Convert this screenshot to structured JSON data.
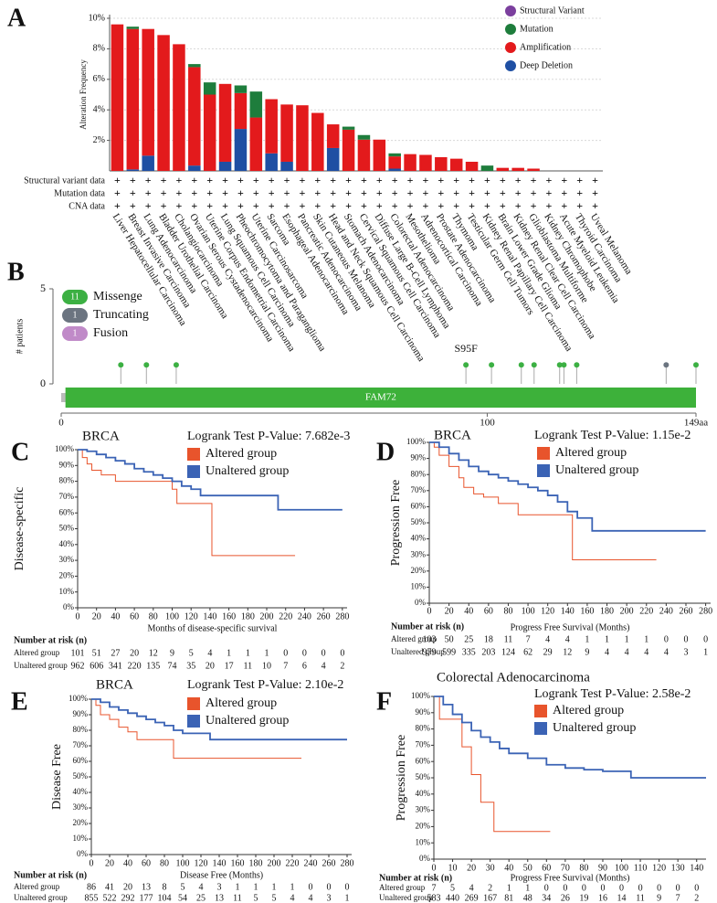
{
  "chart_data": [
    {
      "type": "stacked_bar",
      "panel_label": "A",
      "y_label": "Alteration Frequency",
      "categories": [
        "Liver Hepatocellular Carcinoma",
        "Breast Invasive Carcinoma",
        "Lung Adenocarcinoma",
        "Bladder Urothelial Carcinoma",
        "Cholangiocarcinoma",
        "Ovarian Serous Cystadenocarcinoma",
        "Uterine Corpus Endometrial Carcinoma",
        "Lung Squamous Cell Carcinoma",
        "Pheochromocytoma and Paraganglioma",
        "Uterine Carcinosarcoma",
        "Sarcoma",
        "Esophageal Adenocarcinoma",
        "Pancreatic Adenocarcinoma",
        "Skin Cutaneous Melanoma",
        "Head and Neck Squamous Cell Carcinoma",
        "Stomach Adenocarcinoma",
        "Cervical Squamous Cell Carcinoma",
        "Diffuse Large B-Cell Lymphoma",
        "Colorectal Adenocarcinoma",
        "Mesothelioma",
        "Adrenocortical Carcinoma",
        "Prostate Adenocarcinoma",
        "Thymoma",
        "Testicular Germ Cell Tumors",
        "Kidney Renal Papillary Cell Carcinoma",
        "Brain Lower Grade Glioma",
        "Kidney Renal Clear Cell Carcinoma",
        "Glioblastoma Multiforme",
        "Kidney Chromophobe",
        "Acute Myeloid Leukemia",
        "Thyroid Carcinoma",
        "Uveal Melanoma"
      ],
      "series": [
        {
          "name": "Structural Variant",
          "color": "#7b3f9e",
          "values": [
            0,
            0,
            0,
            0,
            0,
            0,
            0,
            0,
            0,
            0,
            0,
            0,
            0,
            0,
            0,
            0,
            0,
            0,
            0,
            0,
            0,
            0,
            0,
            0,
            0,
            0,
            0,
            0,
            0,
            0,
            0,
            0
          ]
        },
        {
          "name": "Mutation",
          "color": "#1e7d3c",
          "values": [
            0,
            0.15,
            0,
            0,
            0,
            0.2,
            0.8,
            0,
            0.5,
            1.7,
            0,
            0,
            0,
            0,
            0,
            0.2,
            0.3,
            0,
            0.2,
            0,
            0,
            0,
            0,
            0,
            0.35,
            0,
            0,
            0,
            0,
            0,
            0,
            0
          ]
        },
        {
          "name": "Amplification",
          "color": "#e31a1c",
          "values": [
            9.6,
            9.2,
            8.3,
            8.9,
            8.3,
            6.45,
            5.0,
            5.1,
            2.35,
            3.5,
            3.55,
            3.75,
            4.3,
            3.8,
            1.55,
            2.7,
            2.05,
            2.05,
            0.8,
            1.1,
            1.05,
            0.9,
            0.8,
            0.6,
            0,
            0.2,
            0.2,
            0.15,
            0,
            0,
            0,
            0
          ]
        },
        {
          "name": "Deep Deletion",
          "color": "#1f4fa3",
          "values": [
            0,
            0.1,
            1.0,
            0,
            0,
            0.35,
            0,
            0.6,
            2.75,
            0,
            1.15,
            0.6,
            0,
            0,
            1.5,
            0,
            0,
            0,
            0.15,
            0,
            0,
            0,
            0,
            0,
            0,
            0,
            0,
            0,
            0,
            0,
            0,
            0
          ]
        }
      ],
      "ylim": [
        0,
        10
      ],
      "yticks": [
        {
          "value": 2,
          "label": "2%"
        },
        {
          "value": 4,
          "label": "4%"
        },
        {
          "value": 6,
          "label": "6%"
        },
        {
          "value": 8,
          "label": "8%"
        },
        {
          "value": 10,
          "label": "10%"
        }
      ],
      "grid": true,
      "rows": [
        "Structural variant data",
        "Mutation data",
        "CNA data"
      ],
      "row_marker": "+"
    },
    {
      "type": "lollipop",
      "panel_label": "B",
      "y_label": "# patients",
      "series": [
        {
          "name": "Missenge",
          "count": 11,
          "color": "#3cb043",
          "x": [
            14,
            20,
            27,
            95,
            101,
            108,
            111,
            117,
            118,
            121,
            149
          ],
          "values": [
            1,
            1,
            1,
            1,
            1,
            1,
            1,
            1,
            1,
            1,
            1
          ]
        },
        {
          "name": "Truncating",
          "count": 1,
          "color": "#6b7480",
          "x": [
            142
          ],
          "values": [
            1
          ]
        },
        {
          "name": "Fusion",
          "count": 1,
          "color": "#c08ac8",
          "x": [],
          "values": []
        }
      ],
      "domains": [
        {
          "name": "FAM72",
          "start": 1,
          "end": 149,
          "color": "#3db13a"
        }
      ],
      "annotation": {
        "text": "S95F",
        "x": 95
      },
      "xlim": [
        0,
        149
      ],
      "xticks": [
        0,
        100,
        {
          "value": 149,
          "label": "149aa"
        }
      ],
      "ylim": [
        0,
        5
      ],
      "yticks": [
        0,
        5
      ]
    },
    {
      "type": "survival",
      "panel_label": "C",
      "title": "BRCA",
      "subtitle": "Logrank Test P-Value: 7.682e-3",
      "x_label": "Months of disease-specific survival",
      "y_label": "Disease-specific",
      "risk_title": "Number at risk (n)",
      "xlim": [
        0,
        285
      ],
      "xticks": [
        0,
        20,
        40,
        60,
        80,
        100,
        120,
        140,
        160,
        180,
        200,
        220,
        240,
        260,
        280
      ],
      "ylim": [
        0,
        100
      ],
      "yticks": [
        {
          "value": 0,
          "label": "0%"
        },
        {
          "value": 10,
          "label": "10%"
        },
        {
          "value": 20,
          "label": "20%"
        },
        {
          "value": 30,
          "label": "30%"
        },
        {
          "value": 40,
          "label": "40%"
        },
        {
          "value": 50,
          "label": "50%"
        },
        {
          "value": 60,
          "label": "60%"
        },
        {
          "value": 70,
          "label": "70%"
        },
        {
          "value": 80,
          "label": "80%"
        },
        {
          "value": 90,
          "label": "90%"
        },
        {
          "value": 100,
          "label": "100%"
        }
      ],
      "series": [
        {
          "name": "Altered group",
          "color": "#e8542c",
          "x": [
            0,
            5,
            10,
            15,
            25,
            40,
            70,
            100,
            105,
            142,
            230
          ],
          "values": [
            100,
            95,
            91,
            87,
            84,
            80,
            80,
            75,
            66,
            33,
            33
          ],
          "at_risk": [
            101,
            51,
            27,
            20,
            12,
            9,
            5,
            4,
            1,
            1,
            1,
            0,
            0,
            0,
            0
          ]
        },
        {
          "name": "Unaltered group",
          "color": "#3b63b5",
          "x": [
            0,
            10,
            20,
            30,
            40,
            50,
            60,
            70,
            80,
            90,
            100,
            110,
            120,
            130,
            212,
            280
          ],
          "values": [
            100,
            99,
            97,
            95,
            93,
            91,
            88,
            86,
            84,
            82,
            80,
            77,
            75,
            71,
            62,
            62
          ],
          "at_risk": [
            962,
            606,
            341,
            220,
            135,
            74,
            35,
            20,
            17,
            11,
            10,
            7,
            6,
            4,
            2
          ]
        }
      ]
    },
    {
      "type": "survival",
      "panel_label": "D",
      "title": "BRCA",
      "subtitle": "Logrank Test P-Value: 1.15e-2",
      "x_label": "Progress Free Survival (Months)",
      "y_label": "Progression Free",
      "risk_title": "Number at risk (n)",
      "xlim": [
        0,
        285
      ],
      "xticks": [
        0,
        20,
        40,
        60,
        80,
        100,
        120,
        140,
        160,
        180,
        200,
        220,
        240,
        260,
        280
      ],
      "ylim": [
        0,
        100
      ],
      "yticks": [
        {
          "value": 0,
          "label": "0%"
        },
        {
          "value": 10,
          "label": "10%"
        },
        {
          "value": 20,
          "label": "20%"
        },
        {
          "value": 30,
          "label": "30%"
        },
        {
          "value": 40,
          "label": "40%"
        },
        {
          "value": 50,
          "label": "50%"
        },
        {
          "value": 60,
          "label": "60%"
        },
        {
          "value": 70,
          "label": "70%"
        },
        {
          "value": 80,
          "label": "80%"
        },
        {
          "value": 90,
          "label": "90%"
        },
        {
          "value": 100,
          "label": "100%"
        }
      ],
      "series": [
        {
          "name": "Altered group",
          "color": "#e8542c",
          "x": [
            0,
            5,
            10,
            20,
            30,
            35,
            45,
            55,
            70,
            90,
            145,
            230
          ],
          "values": [
            100,
            97,
            92,
            85,
            78,
            72,
            68,
            66,
            62,
            55,
            27,
            27
          ],
          "at_risk": [
            103,
            50,
            25,
            18,
            11,
            7,
            4,
            4,
            1,
            1,
            1,
            1,
            0,
            0,
            0
          ]
        },
        {
          "name": "Unaltered group",
          "color": "#3b63b5",
          "x": [
            0,
            10,
            20,
            30,
            40,
            50,
            60,
            70,
            80,
            90,
            100,
            110,
            120,
            130,
            140,
            150,
            165,
            280
          ],
          "values": [
            100,
            97,
            93,
            89,
            85,
            82,
            80,
            78,
            76,
            74,
            72,
            70,
            67,
            63,
            57,
            53,
            45,
            45
          ],
          "at_risk": [
            979,
            599,
            335,
            203,
            124,
            62,
            29,
            12,
            9,
            4,
            4,
            4,
            4,
            3,
            1
          ]
        }
      ]
    },
    {
      "type": "survival",
      "panel_label": "E",
      "title": "BRCA",
      "subtitle": "Logrank Test P-Value: 2.10e-2",
      "x_label": "Disease Free (Months)",
      "y_label": "Disease Free",
      "risk_title": "Number at risk (n)",
      "xlim": [
        0,
        285
      ],
      "xticks": [
        0,
        20,
        40,
        60,
        80,
        100,
        120,
        140,
        160,
        180,
        200,
        220,
        240,
        260,
        280
      ],
      "ylim": [
        0,
        100
      ],
      "yticks": [
        {
          "value": 0,
          "label": "0%"
        },
        {
          "value": 10,
          "label": "10%"
        },
        {
          "value": 20,
          "label": "20%"
        },
        {
          "value": 30,
          "label": "30%"
        },
        {
          "value": 40,
          "label": "40%"
        },
        {
          "value": 50,
          "label": "50%"
        },
        {
          "value": 60,
          "label": "60%"
        },
        {
          "value": 70,
          "label": "70%"
        },
        {
          "value": 80,
          "label": "80%"
        },
        {
          "value": 90,
          "label": "90%"
        },
        {
          "value": 100,
          "label": "100%"
        }
      ],
      "series": [
        {
          "name": "Altered group",
          "color": "#e8542c",
          "x": [
            0,
            5,
            10,
            20,
            30,
            40,
            50,
            90,
            230
          ],
          "values": [
            100,
            96,
            90,
            87,
            82,
            79,
            74,
            62,
            62
          ],
          "at_risk": [
            86,
            41,
            20,
            13,
            8,
            5,
            4,
            3,
            1,
            1,
            1,
            1,
            0,
            0,
            0
          ]
        },
        {
          "name": "Unaltered group",
          "color": "#3b63b5",
          "x": [
            0,
            10,
            20,
            30,
            40,
            50,
            60,
            70,
            80,
            90,
            100,
            130,
            280
          ],
          "values": [
            100,
            98,
            95,
            93,
            91,
            89,
            87,
            85,
            83,
            80,
            78,
            74,
            74
          ],
          "at_risk": [
            855,
            522,
            292,
            177,
            104,
            54,
            25,
            13,
            11,
            5,
            5,
            4,
            4,
            3,
            1
          ]
        }
      ]
    },
    {
      "type": "survival",
      "panel_label": "F",
      "title": "Colorectal Adenocarcinoma",
      "subtitle": "Logrank Test P-Value: 2.58e-2",
      "x_label": "Progress Free Survival (Months)",
      "y_label": "Progression Free",
      "risk_title": "Number at risk (n)",
      "xlim": [
        0,
        145
      ],
      "xticks": [
        0,
        10,
        20,
        30,
        40,
        50,
        60,
        70,
        80,
        90,
        100,
        110,
        120,
        130,
        140
      ],
      "ylim": [
        0,
        100
      ],
      "yticks": [
        {
          "value": 0,
          "label": "0%"
        },
        {
          "value": 10,
          "label": "10%"
        },
        {
          "value": 20,
          "label": "20%"
        },
        {
          "value": 30,
          "label": "30%"
        },
        {
          "value": 40,
          "label": "40%"
        },
        {
          "value": 50,
          "label": "50%"
        },
        {
          "value": 60,
          "label": "60%"
        },
        {
          "value": 70,
          "label": "70%"
        },
        {
          "value": 80,
          "label": "80%"
        },
        {
          "value": 90,
          "label": "90%"
        },
        {
          "value": 100,
          "label": "100%"
        }
      ],
      "series": [
        {
          "name": "Altered group",
          "color": "#e8542c",
          "x": [
            0,
            3,
            15,
            20,
            25,
            32,
            62
          ],
          "values": [
            100,
            86,
            69,
            52,
            35,
            17,
            17
          ],
          "at_risk": [
            7,
            5,
            4,
            2,
            1,
            1,
            0,
            0,
            0,
            0,
            0,
            0,
            0,
            0,
            0
          ]
        },
        {
          "name": "Unaltered group",
          "color": "#3b63b5",
          "x": [
            0,
            5,
            10,
            15,
            20,
            25,
            30,
            35,
            40,
            50,
            60,
            70,
            80,
            90,
            105,
            145
          ],
          "values": [
            100,
            95,
            89,
            84,
            79,
            75,
            72,
            68,
            65,
            62,
            58,
            56,
            55,
            54,
            50,
            50
          ],
          "at_risk": [
            583,
            440,
            269,
            167,
            81,
            48,
            34,
            26,
            19,
            16,
            14,
            11,
            9,
            7,
            2
          ]
        }
      ]
    }
  ]
}
